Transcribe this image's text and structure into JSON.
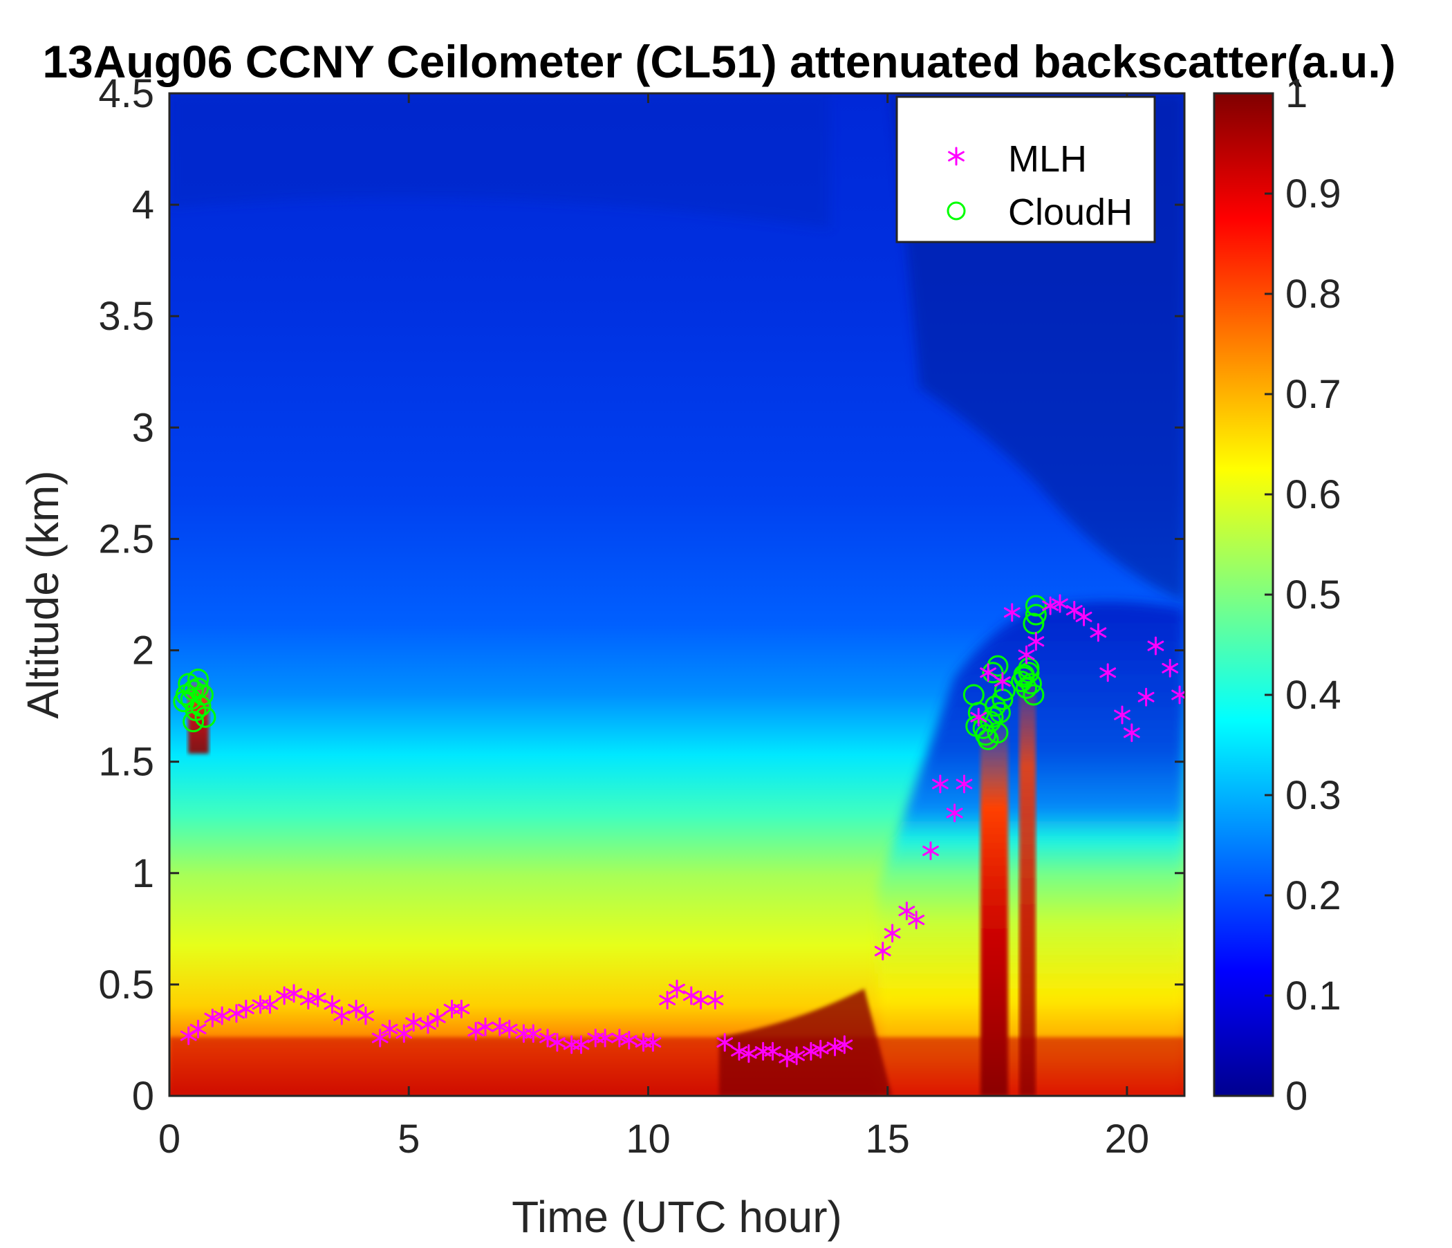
{
  "chart_data": {
    "type": "heatmap",
    "title": "13Aug06 CCNY Ceilometer (CL51) attenuated backscatter(a.u.)",
    "xlabel": "Time (UTC hour)",
    "ylabel": "Altitude (km)",
    "xlim": [
      0,
      21.2
    ],
    "ylim": [
      0,
      4.5
    ],
    "x_ticks": [
      0,
      5,
      10,
      15,
      20
    ],
    "x_tick_labels": [
      "0",
      "5",
      "10",
      "15",
      "20"
    ],
    "y_ticks": [
      0,
      0.5,
      1,
      1.5,
      2,
      2.5,
      3,
      3.5,
      4,
      4.5
    ],
    "y_tick_labels": [
      "0",
      "0.5",
      "1",
      "1.5",
      "2",
      "2.5",
      "3",
      "3.5",
      "4",
      "4.5"
    ],
    "colorbar": {
      "range": [
        0,
        1
      ],
      "ticks": [
        0,
        0.1,
        0.2,
        0.3,
        0.4,
        0.5,
        0.6,
        0.7,
        0.8,
        0.9,
        1
      ],
      "tick_labels": [
        "0",
        "0.1",
        "0.2",
        "0.3",
        "0.4",
        "0.5",
        "0.6",
        "0.7",
        "0.8",
        "0.9",
        "1"
      ],
      "colormap": "jet"
    },
    "legend": {
      "position": "top-right",
      "entries": [
        {
          "label": "MLH",
          "marker": "*",
          "color": "#ff00ff"
        },
        {
          "label": "CloudH",
          "marker": "o",
          "color": "#00ff00"
        }
      ]
    },
    "colors": {
      "mlh": "#ff00ff",
      "cloudh": "#00ff00"
    },
    "series": [
      {
        "name": "MLH",
        "marker": "asterisk",
        "x": [
          0.4,
          0.6,
          0.9,
          1.1,
          1.4,
          1.6,
          1.9,
          2.1,
          2.4,
          2.6,
          2.9,
          3.1,
          3.4,
          3.6,
          3.9,
          4.1,
          4.4,
          4.6,
          4.9,
          5.1,
          5.4,
          5.6,
          5.9,
          6.1,
          6.4,
          6.6,
          6.9,
          7.1,
          7.4,
          7.6,
          7.9,
          8.1,
          8.4,
          8.6,
          8.9,
          9.1,
          9.4,
          9.6,
          9.9,
          10.1,
          10.4,
          10.6,
          10.9,
          11.1,
          11.4,
          11.6,
          11.9,
          12.1,
          12.4,
          12.6,
          12.9,
          13.1,
          13.4,
          13.6,
          13.9,
          14.1,
          14.9,
          15.1,
          15.4,
          15.6,
          15.9,
          16.1,
          16.4,
          16.6,
          16.9,
          17.1,
          17.4,
          17.6,
          17.9,
          18.1,
          18.4,
          18.6,
          18.9,
          19.1,
          19.4,
          19.6,
          19.9,
          20.1,
          20.4,
          20.6,
          20.9,
          21.1
        ],
        "y": [
          0.27,
          0.3,
          0.35,
          0.36,
          0.37,
          0.39,
          0.41,
          0.41,
          0.45,
          0.46,
          0.43,
          0.44,
          0.41,
          0.36,
          0.39,
          0.36,
          0.26,
          0.3,
          0.28,
          0.33,
          0.32,
          0.35,
          0.39,
          0.39,
          0.29,
          0.31,
          0.31,
          0.3,
          0.28,
          0.28,
          0.26,
          0.24,
          0.23,
          0.23,
          0.26,
          0.26,
          0.26,
          0.25,
          0.24,
          0.24,
          0.43,
          0.48,
          0.45,
          0.43,
          0.43,
          0.24,
          0.2,
          0.19,
          0.2,
          0.2,
          0.17,
          0.18,
          0.2,
          0.21,
          0.22,
          0.23,
          0.65,
          0.73,
          0.83,
          0.79,
          1.1,
          1.4,
          1.27,
          1.4,
          1.7,
          1.9,
          1.86,
          2.17,
          1.98,
          2.04,
          2.2,
          2.21,
          2.18,
          2.15,
          2.08,
          1.9,
          1.71,
          1.63,
          1.79,
          2.02,
          1.92,
          1.8
        ]
      },
      {
        "name": "CloudH",
        "marker": "circle",
        "x": [
          0.3,
          0.35,
          0.4,
          0.45,
          0.5,
          0.55,
          0.6,
          0.65,
          0.7,
          0.75,
          0.5,
          0.6,
          16.8,
          16.9,
          17.0,
          17.05,
          17.1,
          17.15,
          17.2,
          17.25,
          17.3,
          17.35,
          17.4,
          17.45,
          16.85,
          17.2,
          17.3,
          17.8,
          17.85,
          17.9,
          17.95,
          18.0,
          18.05,
          18.1,
          18.1,
          18.05,
          17.95,
          17.85
        ],
        "y": [
          1.77,
          1.8,
          1.85,
          1.78,
          1.82,
          1.73,
          1.87,
          1.75,
          1.8,
          1.7,
          1.68,
          1.83,
          1.8,
          1.72,
          1.65,
          1.62,
          1.6,
          1.68,
          1.7,
          1.75,
          1.63,
          1.72,
          1.78,
          1.82,
          1.66,
          1.9,
          1.93,
          1.86,
          1.89,
          1.83,
          1.9,
          1.85,
          1.8,
          2.16,
          2.2,
          2.12,
          1.92,
          1.88
        ]
      }
    ],
    "field_description": "backscatter intensity field (jet colormap): high (0.8-1.0) near surface 0-0.3 km, 0.5-0.7 up to 1.0-1.2 km, 0.3-0.4 transition near 1.3-1.6 km, low (0.1-0.2) above 2 km; strong >0.9 plumes near 17 UTC and 18 UTC reaching ~1.6-2.0 km and at 0.5-0.7 UTC near 1.6-1.9 km; boundary layer deepens to ~2.2 km after 15 UTC"
  }
}
